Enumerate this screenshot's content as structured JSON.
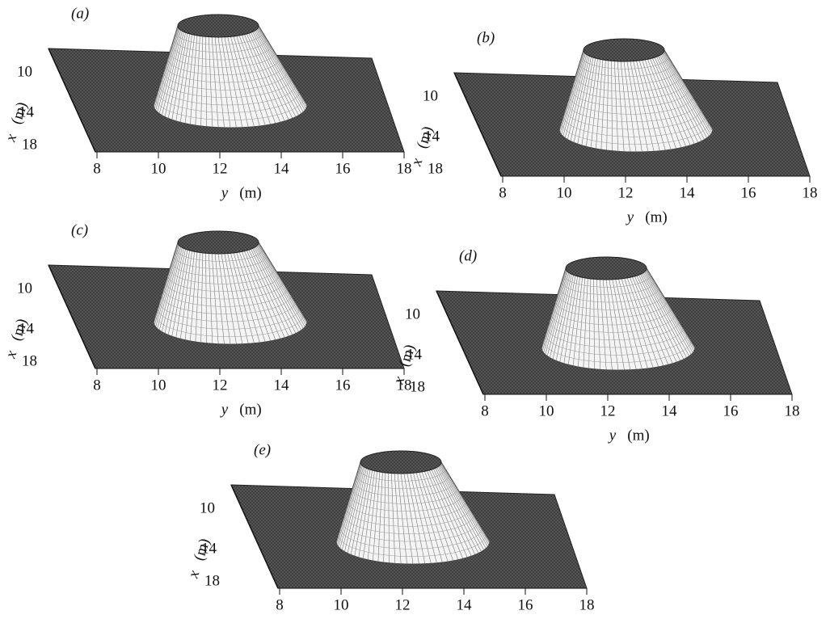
{
  "panels": [
    {
      "label": "(a)",
      "x_ticks": [
        "10",
        "14",
        "18"
      ],
      "x_name": "x",
      "x_unit": "(m)",
      "y_ticks": [
        "8",
        "10",
        "12",
        "14",
        "16",
        "18"
      ],
      "y_name": "y",
      "y_unit": "(m)"
    },
    {
      "label": "(b)",
      "x_ticks": [
        "10",
        "14",
        "18"
      ],
      "x_name": "x",
      "x_unit": "(m)",
      "y_ticks": [
        "8",
        "10",
        "12",
        "14",
        "16",
        "18"
      ],
      "y_name": "y",
      "y_unit": "(m)"
    },
    {
      "label": "(c)",
      "x_ticks": [
        "10",
        "14",
        "18"
      ],
      "x_name": "x",
      "x_unit": "(m)",
      "y_ticks": [
        "8",
        "10",
        "12",
        "14",
        "16",
        "18"
      ],
      "y_name": "y",
      "y_unit": "(m)"
    },
    {
      "label": "(d)",
      "x_ticks": [
        "10",
        "14",
        "18"
      ],
      "x_name": "x",
      "x_unit": "(m)",
      "y_ticks": [
        "8",
        "10",
        "12",
        "14",
        "16",
        "18"
      ],
      "y_name": "y",
      "y_unit": "(m)"
    },
    {
      "label": "(e)",
      "x_ticks": [
        "10",
        "14",
        "18"
      ],
      "x_name": "x",
      "x_unit": "(m)",
      "y_ticks": [
        "8",
        "10",
        "12",
        "14",
        "16",
        "18"
      ]
    }
  ]
}
